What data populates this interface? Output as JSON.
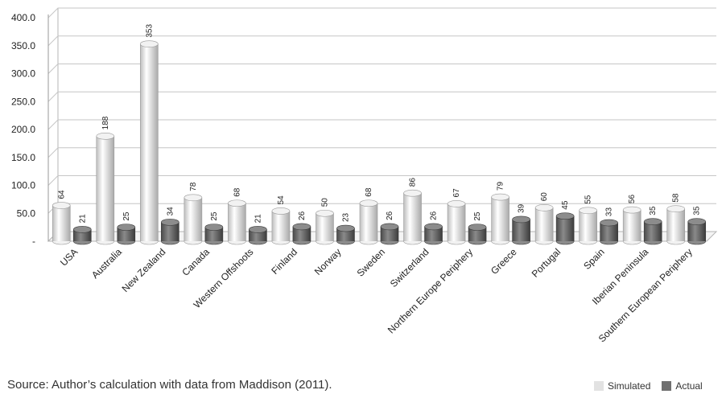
{
  "chart_data": {
    "type": "bar",
    "title": "",
    "xlabel": "",
    "ylabel": "",
    "ylim": [
      0,
      400
    ],
    "y_ticks": [
      "-",
      "50.0",
      "100.0",
      "150.0",
      "200.0",
      "250.0",
      "300.0",
      "350.0",
      "400.0"
    ],
    "y_tick_values": [
      0,
      50,
      100,
      150,
      200,
      250,
      300,
      350,
      400
    ],
    "grid": true,
    "legend_position": "bottom-right",
    "categories": [
      "USA",
      "Australia",
      "New Zealand",
      "Canada",
      "Western Offshoots",
      "Finland",
      "Norway",
      "Sweden",
      "Switzerland",
      "Northern Europe Periphery",
      "Greece",
      "Portugal",
      "Spain",
      "Iberian Peninsula",
      "Southern European Periphery"
    ],
    "series": [
      {
        "name": "Simulated",
        "color": "#e6e6e6",
        "values": [
          64,
          188,
          353,
          78,
          68,
          54,
          50,
          68,
          86,
          67,
          79,
          60,
          55,
          56,
          58
        ]
      },
      {
        "name": "Actual",
        "color": "#6f6f6f",
        "values": [
          21,
          25,
          34,
          25,
          21,
          26,
          23,
          26,
          26,
          25,
          39,
          45,
          33,
          35,
          35
        ]
      }
    ]
  },
  "footer": {
    "source": "Source: Author’s calculation with data from Maddison (2011)."
  }
}
